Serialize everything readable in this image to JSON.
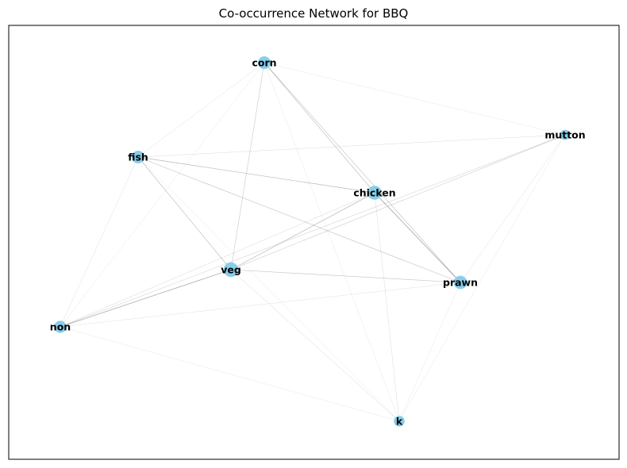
{
  "title": "Co-occurrence Network for BBQ",
  "colors": {
    "node": "#87CEEB",
    "edge": "#888888",
    "frame": "#000000"
  },
  "nodes": [
    {
      "id": "corn",
      "label": "corn",
      "size": 1.0
    },
    {
      "id": "mutton",
      "label": "mutton",
      "size": 0.6
    },
    {
      "id": "fish",
      "label": "fish",
      "size": 1.0
    },
    {
      "id": "chicken",
      "label": "chicken",
      "size": 1.2
    },
    {
      "id": "veg",
      "label": "veg",
      "size": 1.3
    },
    {
      "id": "prawn",
      "label": "prawn",
      "size": 1.1
    },
    {
      "id": "non",
      "label": "non",
      "size": 0.9
    },
    {
      "id": "k",
      "label": "k",
      "size": 0.7
    }
  ],
  "edges": [
    {
      "source": "corn",
      "target": "chicken",
      "weight": 0.55
    },
    {
      "source": "corn",
      "target": "prawn",
      "weight": 0.5
    },
    {
      "source": "corn",
      "target": "veg",
      "weight": 0.45
    },
    {
      "source": "corn",
      "target": "fish",
      "weight": 0.2
    },
    {
      "source": "corn",
      "target": "mutton",
      "weight": 0.15
    },
    {
      "source": "corn",
      "target": "non",
      "weight": 0.15
    },
    {
      "source": "corn",
      "target": "k",
      "weight": 0.15
    },
    {
      "source": "fish",
      "target": "chicken",
      "weight": 0.6
    },
    {
      "source": "fish",
      "target": "prawn",
      "weight": 0.5
    },
    {
      "source": "fish",
      "target": "veg",
      "weight": 0.55
    },
    {
      "source": "fish",
      "target": "mutton",
      "weight": 0.25
    },
    {
      "source": "fish",
      "target": "non",
      "weight": 0.2
    },
    {
      "source": "fish",
      "target": "k",
      "weight": 0.15
    },
    {
      "source": "chicken",
      "target": "prawn",
      "weight": 0.85
    },
    {
      "source": "chicken",
      "target": "veg",
      "weight": 0.65
    },
    {
      "source": "chicken",
      "target": "non",
      "weight": 0.3
    },
    {
      "source": "chicken",
      "target": "k",
      "weight": 0.25
    },
    {
      "source": "mutton",
      "target": "veg",
      "weight": 0.45
    },
    {
      "source": "mutton",
      "target": "non",
      "weight": 0.35
    },
    {
      "source": "mutton",
      "target": "prawn",
      "weight": 0.2
    },
    {
      "source": "mutton",
      "target": "k",
      "weight": 0.15
    },
    {
      "source": "veg",
      "target": "prawn",
      "weight": 0.5
    },
    {
      "source": "veg",
      "target": "non",
      "weight": 0.75
    },
    {
      "source": "veg",
      "target": "k",
      "weight": 0.3
    },
    {
      "source": "prawn",
      "target": "non",
      "weight": 0.2
    },
    {
      "source": "prawn",
      "target": "k",
      "weight": 0.15
    },
    {
      "source": "non",
      "target": "k",
      "weight": 0.15
    }
  ]
}
